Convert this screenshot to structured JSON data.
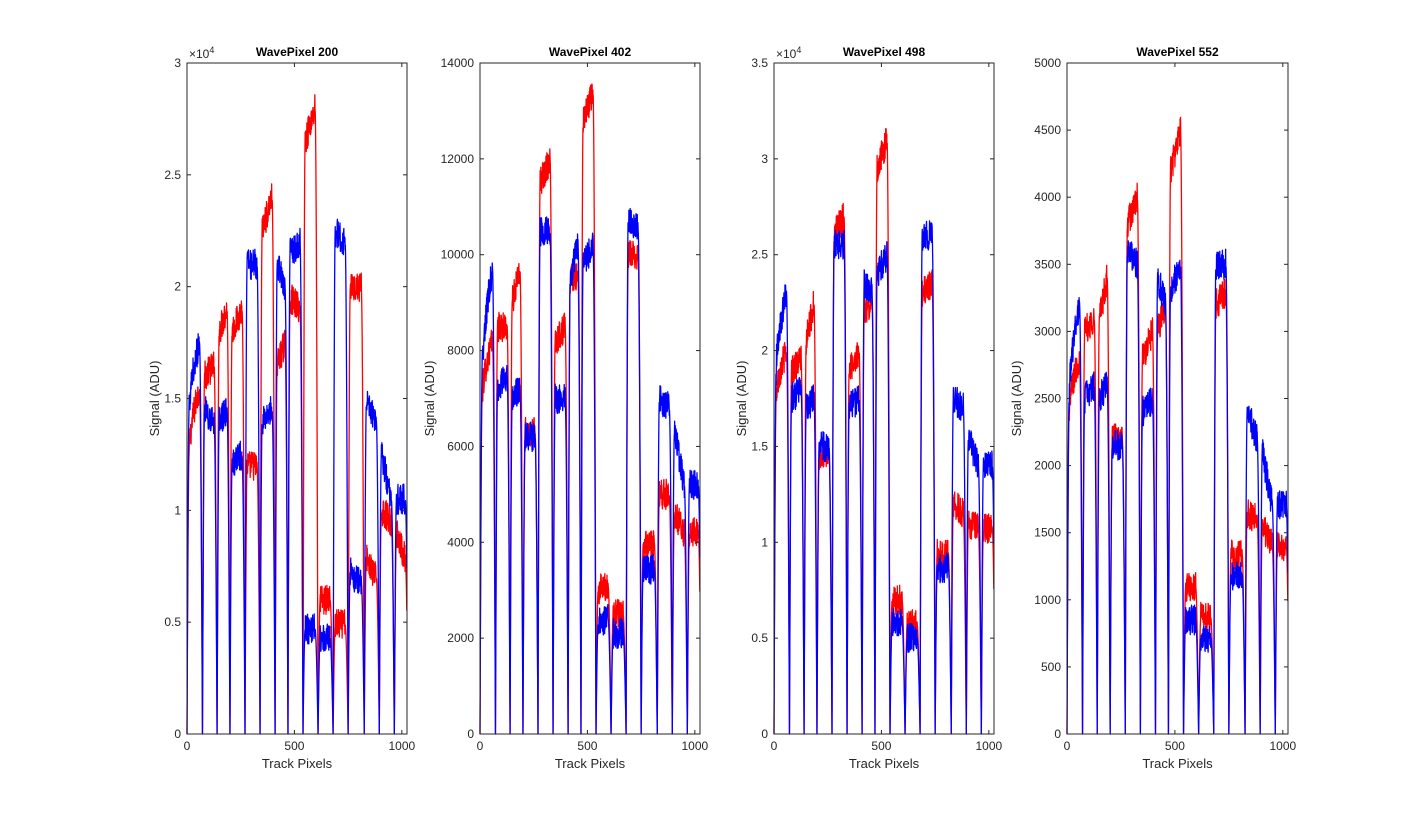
{
  "chart_data": [
    {
      "type": "line",
      "title": "WavePixel 200",
      "xlabel": "Track Pixels",
      "ylabel": "Signal (ADU)",
      "xlim": [
        0,
        1024
      ],
      "ylim": [
        0,
        30000
      ],
      "xticks": [
        0,
        500,
        1000
      ],
      "yticks": [
        0,
        5000,
        10000,
        15000,
        20000,
        25000,
        30000
      ],
      "ytick_labels": [
        "0",
        "0.5",
        "1",
        "1.5",
        "2",
        "2.5",
        "3"
      ],
      "y_exponent": "4",
      "grid": false,
      "series": [
        {
          "color": "#ff0000",
          "segments": [
            [
              0,
              15,
              12500,
              15500,
              0.6
            ],
            [
              72,
              85,
              16000,
              16500,
              0
            ],
            [
              140,
              150,
              18000,
              19000,
              0
            ],
            [
              200,
              210,
              18000,
              19000,
              0
            ],
            [
              270,
              280,
              12000,
              12000,
              0
            ],
            [
              340,
              350,
              22500,
              24000,
              0
            ],
            [
              410,
              420,
              16500,
              17500,
              0
            ],
            [
              470,
              480,
              19500,
              19000,
              0
            ],
            [
              540,
              550,
              26500,
              28000,
              0
            ],
            [
              610,
              620,
              6000,
              6000,
              0
            ],
            [
              680,
              690,
              4900,
              4900,
              0
            ],
            [
              750,
              760,
              20000,
              20000,
              0
            ],
            [
              825,
              835,
              8000,
              7000,
              -0.3
            ],
            [
              895,
              905,
              10000,
              9500,
              0
            ],
            [
              965,
              975,
              9000,
              7800,
              0
            ]
          ]
        },
        {
          "color": "#0000ff",
          "segments": [
            [
              0,
              15,
              14500,
              17500,
              0.7
            ],
            [
              72,
              85,
              14500,
              14000,
              0
            ],
            [
              140,
              150,
              14000,
              14500,
              0
            ],
            [
              200,
              210,
              12000,
              12500,
              0
            ],
            [
              270,
              280,
              21000,
              21000,
              0
            ],
            [
              340,
              350,
              14000,
              14500,
              0
            ],
            [
              410,
              420,
              21000,
              20000,
              0
            ],
            [
              470,
              480,
              21500,
              22000,
              0
            ],
            [
              540,
              550,
              4700,
              4700,
              0
            ],
            [
              610,
              620,
              4300,
              4300,
              0
            ],
            [
              680,
              690,
              22500,
              22000,
              0
            ],
            [
              750,
              760,
              7300,
              6800,
              -0.3
            ],
            [
              825,
              835,
              14800,
              14000,
              0
            ],
            [
              895,
              905,
              12500,
              10500,
              0
            ],
            [
              965,
              975,
              10500,
              10500,
              0
            ]
          ]
        }
      ]
    },
    {
      "type": "line",
      "title": "WavePixel 402",
      "xlabel": "Track Pixels",
      "ylabel": "Signal (ADU)",
      "xlim": [
        0,
        1024
      ],
      "ylim": [
        0,
        14000
      ],
      "xticks": [
        0,
        500,
        1000
      ],
      "yticks": [
        0,
        2000,
        4000,
        6000,
        8000,
        10000,
        12000,
        14000
      ],
      "ytick_labels": [
        "0",
        "2000",
        "4000",
        "6000",
        "8000",
        "10000",
        "12000",
        "14000"
      ],
      "y_exponent": "",
      "grid": false,
      "series": [
        {
          "color": "#ff0000",
          "segments": [
            [
              0,
              15,
              7000,
              8200,
              0.6
            ],
            [
              72,
              85,
              8500,
              8500,
              0
            ],
            [
              140,
              150,
              9000,
              9700,
              0
            ],
            [
              200,
              210,
              6300,
              6300,
              0
            ],
            [
              270,
              280,
              11500,
              12000,
              0
            ],
            [
              340,
              350,
              8200,
              8500,
              0
            ],
            [
              410,
              420,
              9500,
              9500,
              0
            ],
            [
              470,
              480,
              12800,
              13400,
              0
            ],
            [
              540,
              550,
              3000,
              3100,
              0
            ],
            [
              610,
              620,
              2500,
              2500,
              0
            ],
            [
              680,
              690,
              10000,
              10000,
              0
            ],
            [
              750,
              760,
              4000,
              4000,
              -0.3
            ],
            [
              825,
              835,
              5000,
              5000,
              0
            ],
            [
              895,
              905,
              4600,
              4200,
              0
            ],
            [
              965,
              975,
              4200,
              4200,
              0
            ]
          ]
        },
        {
          "color": "#0000ff",
          "segments": [
            [
              0,
              15,
              7500,
              9700,
              0.7
            ],
            [
              72,
              85,
              7200,
              7500,
              0
            ],
            [
              140,
              150,
              7000,
              7200,
              0
            ],
            [
              200,
              210,
              6200,
              6200,
              0
            ],
            [
              270,
              280,
              10500,
              10500,
              0
            ],
            [
              340,
              350,
              7000,
              7000,
              0
            ],
            [
              410,
              420,
              9500,
              10200,
              0
            ],
            [
              470,
              480,
              9800,
              10200,
              0
            ],
            [
              540,
              550,
              2300,
              2400,
              0
            ],
            [
              610,
              620,
              2100,
              2100,
              0
            ],
            [
              680,
              690,
              10800,
              10500,
              0
            ],
            [
              750,
              760,
              3500,
              3500,
              -0.3
            ],
            [
              825,
              835,
              7000,
              6800,
              0
            ],
            [
              895,
              905,
              6300,
              5200,
              0
            ],
            [
              965,
              975,
              5200,
              5200,
              0
            ]
          ]
        }
      ]
    },
    {
      "type": "line",
      "title": "WavePixel 498",
      "xlabel": "Track Pixels",
      "ylabel": "Signal (ADU)",
      "xlim": [
        0,
        1024
      ],
      "ylim": [
        0,
        35000
      ],
      "xticks": [
        0,
        500,
        1000
      ],
      "yticks": [
        0,
        5000,
        10000,
        15000,
        20000,
        25000,
        30000,
        35000
      ],
      "ytick_labels": [
        "0",
        "0.5",
        "1",
        "1.5",
        "2",
        "2.5",
        "3",
        "3.5"
      ],
      "y_exponent": "4",
      "grid": false,
      "series": [
        {
          "color": "#ff0000",
          "segments": [
            [
              0,
              15,
              17500,
              20000,
              0.6
            ],
            [
              72,
              85,
              19000,
              19500,
              0
            ],
            [
              140,
              150,
              20500,
              22500,
              0
            ],
            [
              200,
              210,
              14500,
              14500,
              0
            ],
            [
              270,
              280,
              26000,
              27000,
              0
            ],
            [
              340,
              350,
              19000,
              20000,
              0
            ],
            [
              410,
              420,
              22000,
              22500,
              0
            ],
            [
              470,
              480,
              29500,
              31000,
              0
            ],
            [
              540,
              550,
              7000,
              7000,
              0
            ],
            [
              610,
              620,
              5700,
              5700,
              0
            ],
            [
              680,
              690,
              23000,
              23500,
              0
            ],
            [
              750,
              760,
              9500,
              9500,
              -0.3
            ],
            [
              825,
              835,
              12000,
              11500,
              0
            ],
            [
              895,
              905,
              11000,
              10700,
              0
            ],
            [
              965,
              975,
              10700,
              10700,
              0
            ]
          ]
        },
        {
          "color": "#0000ff",
          "segments": [
            [
              0,
              15,
              19000,
              23000,
              0.7
            ],
            [
              72,
              85,
              17500,
              18000,
              0
            ],
            [
              140,
              150,
              17000,
              17500,
              0
            ],
            [
              200,
              210,
              15000,
              15000,
              0
            ],
            [
              270,
              280,
              25500,
              25500,
              0
            ],
            [
              340,
              350,
              17000,
              17500,
              0
            ],
            [
              410,
              420,
              23500,
              23000,
              0
            ],
            [
              470,
              480,
              24000,
              25000,
              0
            ],
            [
              540,
              550,
              5800,
              5800,
              0
            ],
            [
              610,
              620,
              5000,
              5000,
              0
            ],
            [
              680,
              690,
              26000,
              26000,
              0
            ],
            [
              750,
              760,
              8800,
              8800,
              -0.3
            ],
            [
              825,
              835,
              17500,
              17000,
              0
            ],
            [
              895,
              905,
              15500,
              14000,
              0
            ],
            [
              965,
              975,
              14000,
              14000,
              0
            ]
          ]
        }
      ]
    },
    {
      "type": "line",
      "title": "WavePixel 552",
      "xlabel": "Track Pixels",
      "ylabel": "Signal (ADU)",
      "xlim": [
        0,
        1024
      ],
      "ylim": [
        0,
        5000
      ],
      "xticks": [
        0,
        500,
        1000
      ],
      "yticks": [
        0,
        500,
        1000,
        1500,
        2000,
        2500,
        3000,
        3500,
        4000,
        4500,
        5000
      ],
      "ytick_labels": [
        "0",
        "500",
        "1000",
        "1500",
        "2000",
        "2500",
        "3000",
        "3500",
        "4000",
        "4500",
        "5000"
      ],
      "y_exponent": "",
      "grid": false,
      "series": [
        {
          "color": "#ff0000",
          "segments": [
            [
              0,
              15,
              2400,
              2800,
              0.6
            ],
            [
              72,
              85,
              3000,
              3100,
              0
            ],
            [
              140,
              150,
              3100,
              3400,
              0
            ],
            [
              200,
              210,
              2200,
              2200,
              0
            ],
            [
              270,
              280,
              3800,
              4000,
              0
            ],
            [
              340,
              350,
              2800,
              3000,
              0
            ],
            [
              410,
              420,
              3000,
              3200,
              0
            ],
            [
              470,
              480,
              4200,
              4500,
              0
            ],
            [
              540,
              550,
              1100,
              1100,
              0
            ],
            [
              610,
              620,
              870,
              870,
              0
            ],
            [
              680,
              690,
              3200,
              3300,
              0
            ],
            [
              750,
              760,
              1350,
              1350,
              -0.3
            ],
            [
              825,
              835,
              1650,
              1600,
              0
            ],
            [
              895,
              905,
              1550,
              1400,
              0
            ],
            [
              965,
              975,
              1400,
              1400,
              0
            ]
          ]
        },
        {
          "color": "#0000ff",
          "segments": [
            [
              0,
              15,
              2500,
              3200,
              0.7
            ],
            [
              72,
              85,
              2500,
              2600,
              0
            ],
            [
              140,
              150,
              2500,
              2600,
              0
            ],
            [
              200,
              210,
              2150,
              2150,
              0
            ],
            [
              270,
              280,
              3600,
              3500,
              0
            ],
            [
              340,
              350,
              2400,
              2500,
              0
            ],
            [
              410,
              420,
              3400,
              3200,
              0
            ],
            [
              470,
              480,
              3300,
              3500,
              0
            ],
            [
              540,
              550,
              850,
              850,
              0
            ],
            [
              610,
              620,
              720,
              720,
              0
            ],
            [
              680,
              690,
              3500,
              3500,
              0
            ],
            [
              750,
              760,
              1200,
              1200,
              -0.3
            ],
            [
              825,
              835,
              2400,
              2200,
              0
            ],
            [
              895,
              905,
              2100,
              1700,
              0
            ],
            [
              965,
              975,
              1700,
              1700,
              0
            ]
          ]
        }
      ]
    }
  ]
}
